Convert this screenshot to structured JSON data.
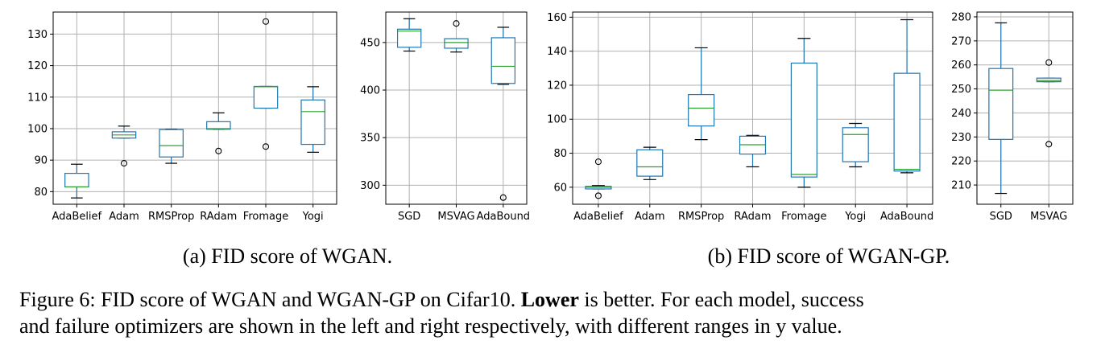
{
  "chart_data": [
    {
      "type": "boxplot",
      "panel": "a-left",
      "title": "",
      "xlabel": "",
      "ylabel": "",
      "ylim": [
        76,
        137
      ],
      "yticks": [
        80,
        90,
        100,
        110,
        120,
        130
      ],
      "grid": true,
      "categories": [
        "AdaBelief",
        "Adam",
        "RMSProp",
        "RAdam",
        "Fromage",
        "Yogi"
      ],
      "boxes": [
        {
          "whislo": 78,
          "q1": 81.5,
          "med": 81.5,
          "q3": 85.8,
          "whishi": 88.7,
          "fliers": []
        },
        {
          "whislo": 97,
          "q1": 97,
          "med": 98,
          "q3": 99,
          "whishi": 100.8,
          "fliers": [
            89
          ]
        },
        {
          "whislo": 89,
          "q1": 91,
          "med": 94.6,
          "q3": 99.7,
          "whishi": 99.8,
          "fliers": []
        },
        {
          "whislo": 99.8,
          "q1": 99.8,
          "med": 100,
          "q3": 102.2,
          "whishi": 105,
          "fliers": [
            92.9
          ]
        },
        {
          "whislo": 106.5,
          "q1": 106.5,
          "med": 113.3,
          "q3": 113.4,
          "whishi": 113.4,
          "fliers": [
            94.3,
            134
          ]
        },
        {
          "whislo": 92.5,
          "q1": 95,
          "med": 105.4,
          "q3": 109.1,
          "whishi": 113.3,
          "fliers": []
        }
      ]
    },
    {
      "type": "boxplot",
      "panel": "a-right",
      "title": "",
      "xlabel": "",
      "ylabel": "",
      "ylim": [
        280,
        482
      ],
      "yticks": [
        300,
        350,
        400,
        450
      ],
      "grid": true,
      "categories": [
        "SGD",
        "MSVAG",
        "AdaBound"
      ],
      "boxes": [
        {
          "whislo": 441,
          "q1": 445,
          "med": 462,
          "q3": 464,
          "whishi": 475,
          "fliers": []
        },
        {
          "whislo": 440,
          "q1": 444,
          "med": 450,
          "q3": 454,
          "whishi": 454,
          "fliers": [
            470
          ]
        },
        {
          "whislo": 406,
          "q1": 407,
          "med": 425,
          "q3": 455,
          "whishi": 466,
          "fliers": [
            287
          ]
        }
      ]
    },
    {
      "type": "boxplot",
      "panel": "b-left",
      "title": "",
      "xlabel": "",
      "ylabel": "",
      "ylim": [
        50,
        163
      ],
      "yticks": [
        60,
        80,
        100,
        120,
        140,
        160
      ],
      "grid": true,
      "categories": [
        "AdaBelief",
        "Adam",
        "RMSProp",
        "RAdam",
        "Fromage",
        "Yogi",
        "AdaBound"
      ],
      "boxes": [
        {
          "whislo": 59,
          "q1": 59,
          "med": 60,
          "q3": 60.5,
          "whishi": 61,
          "fliers": [
            75,
            55
          ]
        },
        {
          "whislo": 64.5,
          "q1": 66.5,
          "med": 72,
          "q3": 82,
          "whishi": 83.5,
          "fliers": []
        },
        {
          "whislo": 88,
          "q1": 96,
          "med": 106.5,
          "q3": 114.5,
          "whishi": 142,
          "fliers": []
        },
        {
          "whislo": 72,
          "q1": 79.5,
          "med": 85,
          "q3": 90,
          "whishi": 90.5,
          "fliers": []
        },
        {
          "whislo": 60,
          "q1": 66,
          "med": 67.5,
          "q3": 133,
          "whishi": 147.5,
          "fliers": []
        },
        {
          "whislo": 72,
          "q1": 75,
          "med": 91,
          "q3": 95,
          "whishi": 97.5,
          "fliers": []
        },
        {
          "whislo": 68.5,
          "q1": 69.5,
          "med": 70.5,
          "q3": 127,
          "whishi": 158.5,
          "fliers": []
        }
      ]
    },
    {
      "type": "boxplot",
      "panel": "b-right",
      "title": "",
      "xlabel": "",
      "ylabel": "",
      "ylim": [
        202,
        282
      ],
      "yticks": [
        210,
        220,
        230,
        240,
        250,
        260,
        270,
        280
      ],
      "grid": true,
      "categories": [
        "SGD",
        "MSVAG"
      ],
      "boxes": [
        {
          "whislo": 206.5,
          "q1": 229,
          "med": 249.5,
          "q3": 258.5,
          "whishi": 277.5,
          "fliers": []
        },
        {
          "whislo": 253,
          "q1": 253,
          "med": 253.5,
          "q3": 254.5,
          "whishi": 254.5,
          "fliers": [
            261,
            227
          ]
        }
      ]
    }
  ],
  "captions": {
    "sub_a": "(a) FID score of WGAN.",
    "sub_b": "(b) FID score of WGAN-GP.",
    "figure_prefix": "Figure 6: FID score of WGAN and WGAN-GP on Cifar10. ",
    "figure_bold": "Lower",
    "figure_rest": " is better. For each model, success",
    "figure_line2": "and failure optimizers are shown in the left and right respectively, with different ranges in y value."
  }
}
